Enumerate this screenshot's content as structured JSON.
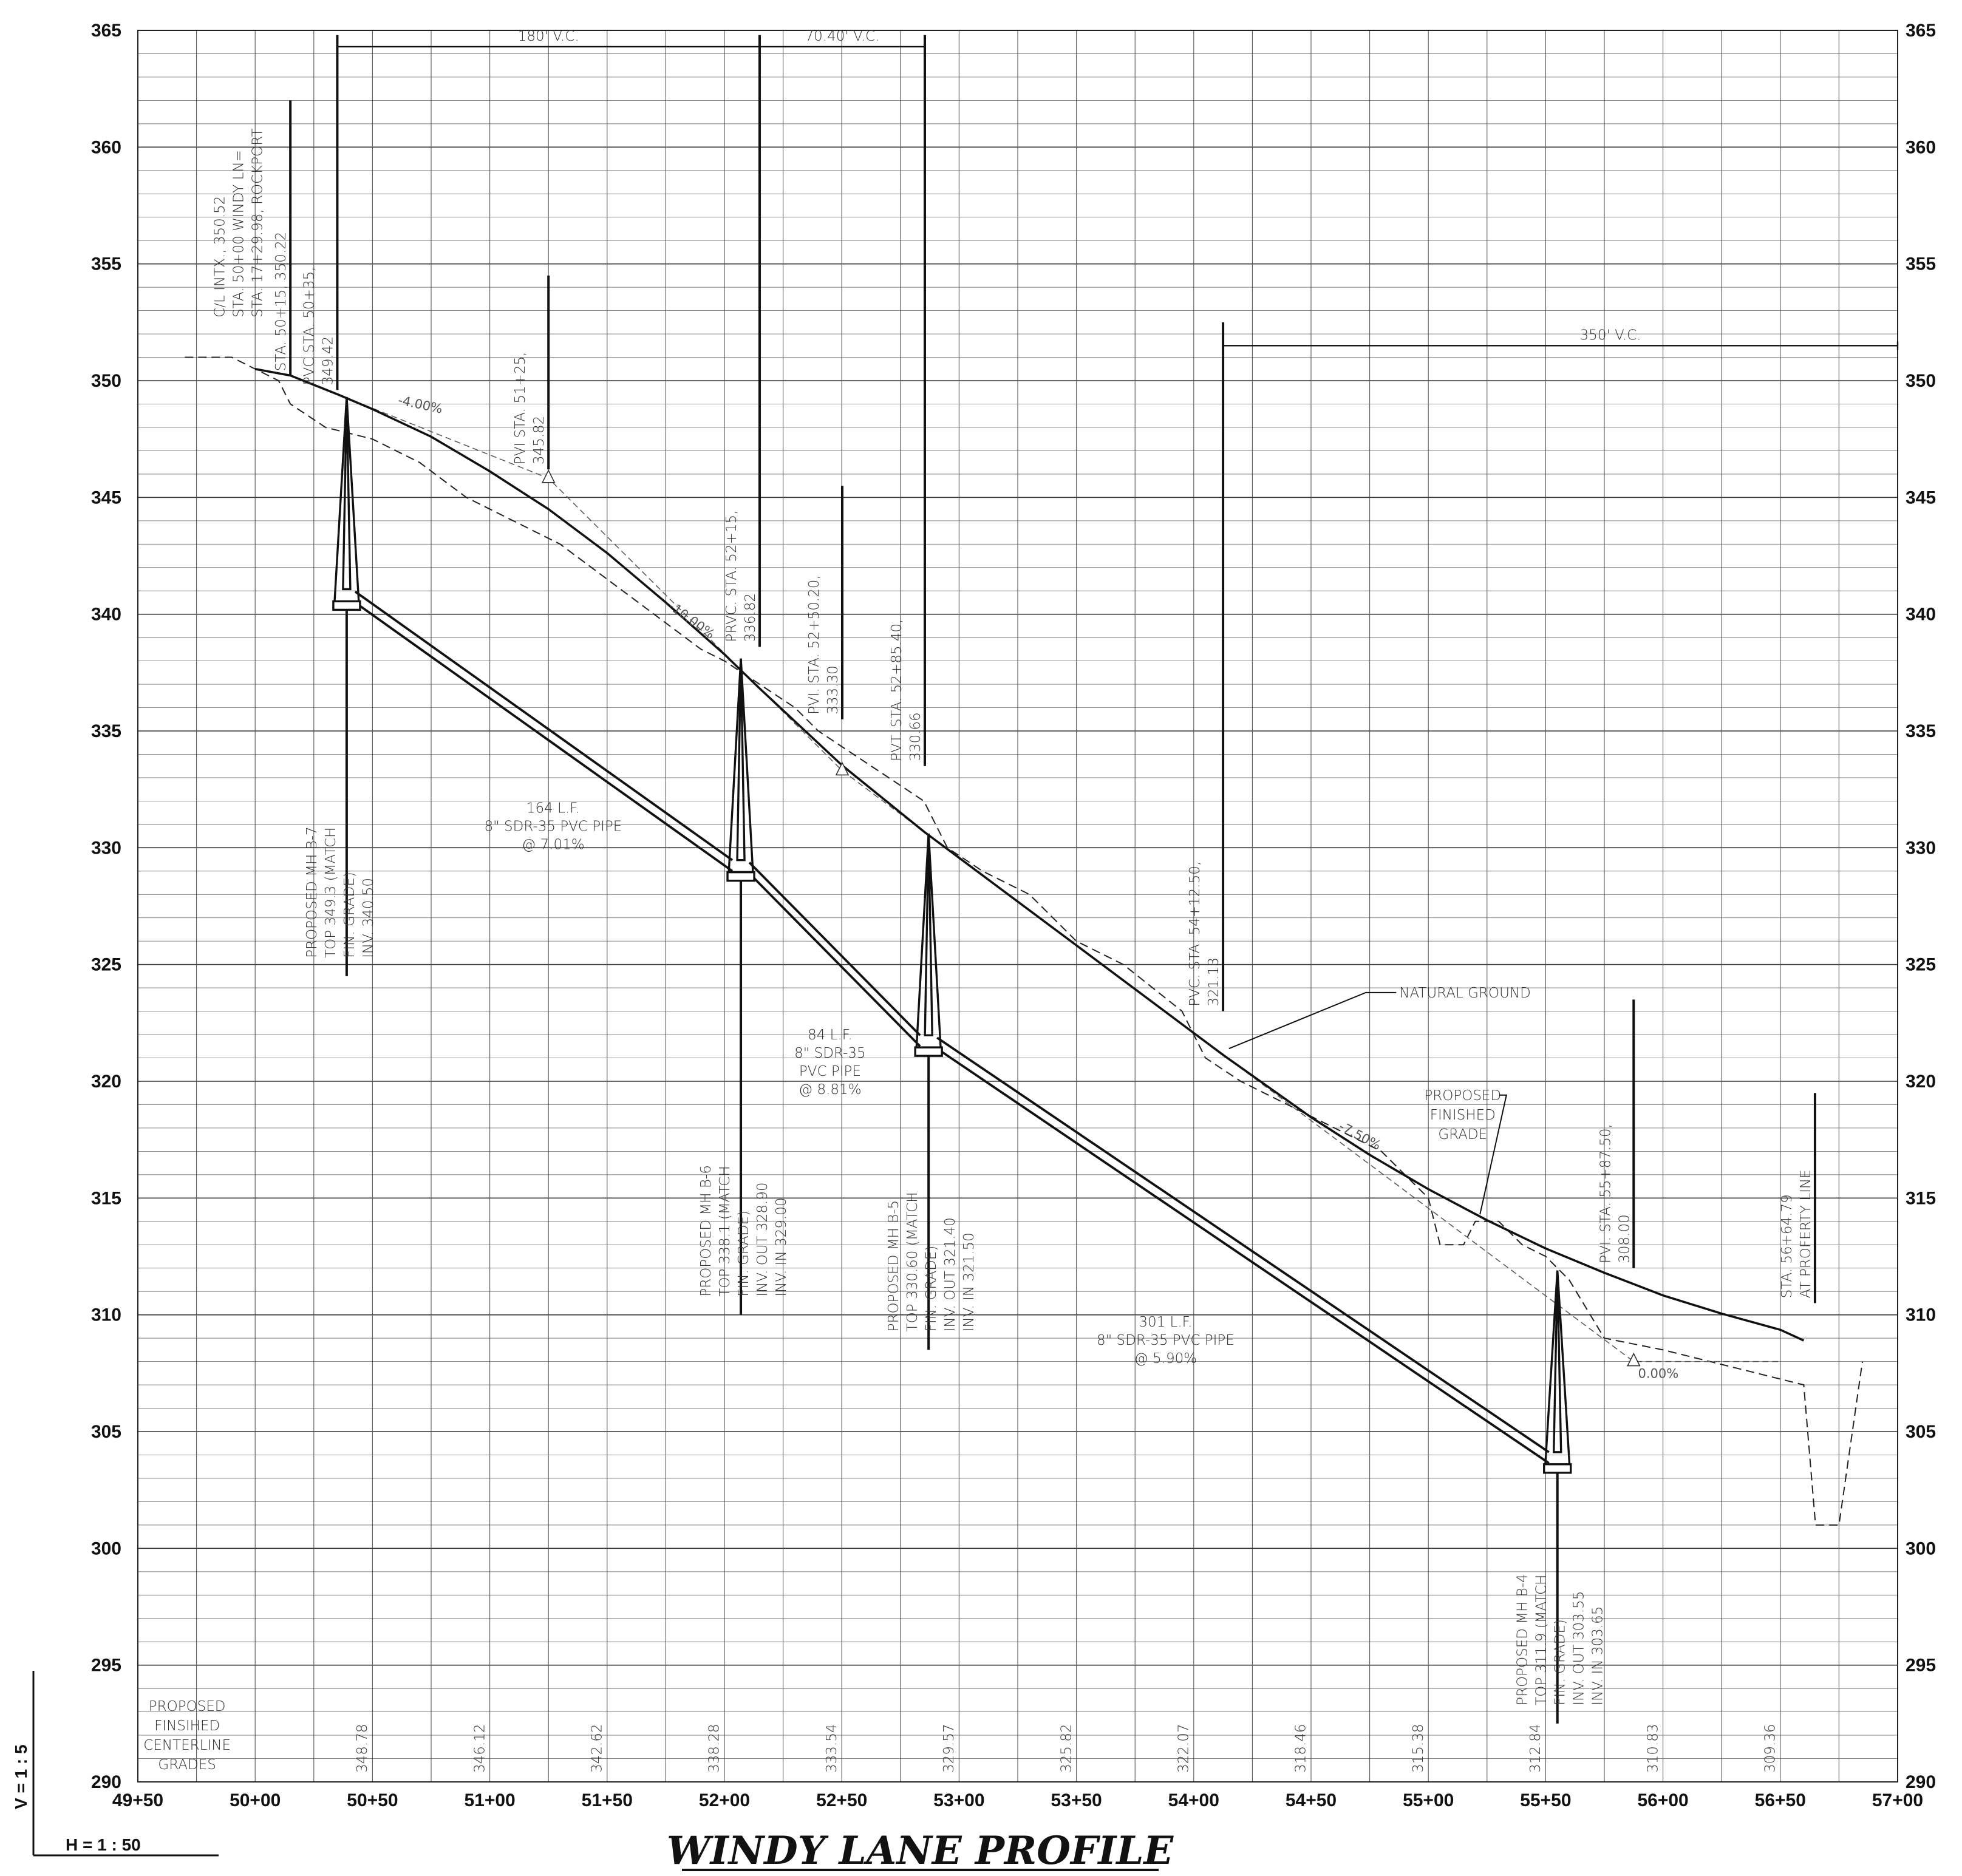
{
  "title": "WINDY   LANE   PROFILE",
  "scale": {
    "horizontal": "H = 1 : 50",
    "vertical": "V = 1 : 5"
  },
  "chart_data": {
    "type": "profile",
    "x_range": [
      4950,
      5700
    ],
    "y_range": [
      290,
      365
    ],
    "y_ticks": [
      290,
      295,
      300,
      305,
      310,
      315,
      320,
      325,
      330,
      335,
      340,
      345,
      350,
      355,
      360,
      365
    ],
    "x_ticks": [
      {
        "x": 4950,
        "label": "49+50"
      },
      {
        "x": 5000,
        "label": "50+00"
      },
      {
        "x": 5050,
        "label": "50+50"
      },
      {
        "x": 5100,
        "label": "51+00"
      },
      {
        "x": 5150,
        "label": "51+50"
      },
      {
        "x": 5200,
        "label": "52+00"
      },
      {
        "x": 5250,
        "label": "52+50"
      },
      {
        "x": 5300,
        "label": "53+00"
      },
      {
        "x": 5350,
        "label": "53+50"
      },
      {
        "x": 5400,
        "label": "54+00"
      },
      {
        "x": 5450,
        "label": "54+50"
      },
      {
        "x": 5500,
        "label": "55+00"
      },
      {
        "x": 5550,
        "label": "55+50"
      },
      {
        "x": 5600,
        "label": "56+00"
      },
      {
        "x": 5650,
        "label": "56+50"
      },
      {
        "x": 5700,
        "label": "57+00"
      }
    ],
    "centerline_grades_label": [
      "PROPOSED",
      "FINSIHED",
      "CENTERLINE",
      "GRADES"
    ],
    "centerline_grades": [
      {
        "x": 5045,
        "label": "348.78"
      },
      {
        "x": 5095,
        "label": "346.12"
      },
      {
        "x": 5145,
        "label": "342.62"
      },
      {
        "x": 5195,
        "label": "338.28"
      },
      {
        "x": 5245,
        "label": "333.54"
      },
      {
        "x": 5295,
        "label": "329.57"
      },
      {
        "x": 5345,
        "label": "325.82"
      },
      {
        "x": 5395,
        "label": "322.07"
      },
      {
        "x": 5445,
        "label": "318.46"
      },
      {
        "x": 5495,
        "label": "315.38"
      },
      {
        "x": 5545,
        "label": "312.84"
      },
      {
        "x": 5595,
        "label": "310.83"
      },
      {
        "x": 5645,
        "label": "309.36"
      }
    ],
    "finished_grade": [
      [
        5000,
        350.5
      ],
      [
        5015,
        350.22
      ],
      [
        5035,
        349.42
      ],
      [
        5050,
        348.78
      ],
      [
        5075,
        347.6
      ],
      [
        5100,
        346.12
      ],
      [
        5125,
        344.5
      ],
      [
        5150,
        342.62
      ],
      [
        5175,
        340.5
      ],
      [
        5200,
        338.28
      ],
      [
        5215,
        336.82
      ],
      [
        5250,
        333.54
      ],
      [
        5285.4,
        330.66
      ],
      [
        5300,
        329.57
      ],
      [
        5350,
        325.82
      ],
      [
        5400,
        322.07
      ],
      [
        5412.5,
        321.13
      ],
      [
        5450,
        318.46
      ],
      [
        5475,
        316.85
      ],
      [
        5500,
        315.38
      ],
      [
        5525,
        314.05
      ],
      [
        5550,
        312.84
      ],
      [
        5575,
        311.8
      ],
      [
        5600,
        310.83
      ],
      [
        5625,
        310.05
      ],
      [
        5650,
        309.36
      ],
      [
        5660,
        308.9
      ]
    ],
    "natural_ground": [
      [
        4970,
        351
      ],
      [
        4990,
        351
      ],
      [
        5010,
        350
      ],
      [
        5015,
        349
      ],
      [
        5030,
        348
      ],
      [
        5050,
        347.5
      ],
      [
        5070,
        346.5
      ],
      [
        5090,
        345
      ],
      [
        5110,
        344
      ],
      [
        5130,
        343
      ],
      [
        5150,
        341.5
      ],
      [
        5170,
        340
      ],
      [
        5190,
        338.5
      ],
      [
        5200,
        338
      ],
      [
        5215,
        337
      ],
      [
        5230,
        336
      ],
      [
        5240,
        335
      ],
      [
        5255,
        334
      ],
      [
        5270,
        333
      ],
      [
        5285,
        332
      ],
      [
        5295,
        330
      ],
      [
        5310,
        329
      ],
      [
        5330,
        328
      ],
      [
        5350,
        326
      ],
      [
        5370,
        325
      ],
      [
        5395,
        323
      ],
      [
        5405,
        321
      ],
      [
        5420,
        320
      ],
      [
        5440,
        319
      ],
      [
        5460,
        318
      ],
      [
        5480,
        317
      ],
      [
        5500,
        315
      ],
      [
        5505,
        313
      ],
      [
        5515,
        313
      ],
      [
        5520,
        314
      ],
      [
        5530,
        314
      ],
      [
        5540,
        313
      ],
      [
        5550,
        312.5
      ],
      [
        5560,
        311.5
      ],
      [
        5575,
        309
      ],
      [
        5600,
        308.5
      ],
      [
        5640,
        307.5
      ],
      [
        5660,
        307
      ],
      [
        5665,
        301
      ],
      [
        5675,
        301
      ],
      [
        5685,
        308
      ]
    ],
    "tangent_lines": [
      [
        [
          5035,
          349.42
        ],
        [
          5125,
          345.82
        ],
        [
          5215,
          336.82
        ]
      ],
      [
        [
          5215,
          336.82
        ],
        [
          5250.2,
          333.3
        ],
        [
          5285.4,
          330.66
        ]
      ],
      [
        [
          5412.5,
          321.13
        ],
        [
          5587.5,
          308.0
        ],
        [
          5650,
          308.0
        ]
      ]
    ],
    "pvi_markers": [
      [
        5125,
        345.82
      ],
      [
        5250.2,
        333.3
      ],
      [
        5587.5,
        308.0
      ]
    ],
    "grade_labels": [
      {
        "x": 5070,
        "y": 348.8,
        "label": "-4.00%",
        "angle": 12
      },
      {
        "x": 5185,
        "y": 339.6,
        "label": "-10.00%",
        "angle": 36
      },
      {
        "x": 5470,
        "y": 317.5,
        "label": "-7.50%",
        "angle": 28
      },
      {
        "x": 5598,
        "y": 307.3,
        "label": "0.00%",
        "angle": 0
      }
    ],
    "vertical_curves": [
      {
        "start": 5035,
        "end": 5215,
        "y": 364.3,
        "label": "180' V.C."
      },
      {
        "start": 5215,
        "end": 5285.4,
        "y": 364.3,
        "label": "70.40' V.C."
      },
      {
        "start": 5412.5,
        "end": 5700,
        "y": 351.5,
        "label": "350' V.C."
      }
    ],
    "station_callouts": [
      {
        "x": 5005,
        "y0": 352.5,
        "y1": 352.5,
        "lines": [
          "C/L INTX., 350.52",
          "STA. 50+00 WINDY LN=",
          "STA. 17+29.98, ROCKPORT"
        ]
      },
      {
        "x": 5015,
        "y0": 350.2,
        "y1": 362.0,
        "lines": [
          "STA. 50+15, 350.22"
        ]
      },
      {
        "x": 5035,
        "y0": 349.6,
        "y1": 364.8,
        "lines": [
          "PVC STA. 50+35,",
          "349.42"
        ]
      },
      {
        "x": 5125,
        "y0": 346.2,
        "y1": 354.5,
        "lines": [
          "PVI STA. 51+25,",
          "345.82"
        ]
      },
      {
        "x": 5215,
        "y0": 338.6,
        "y1": 364.8,
        "lines": [
          "PRVC. STA. 52+15,",
          "336.82"
        ]
      },
      {
        "x": 5250.2,
        "y0": 335.5,
        "y1": 345.5,
        "lines": [
          "PVI. STA. 52+50.20,",
          "333.30"
        ]
      },
      {
        "x": 5285.4,
        "y0": 333.5,
        "y1": 364.8,
        "lines": [
          "PVT. STA. 52+85.40,",
          "330.66"
        ]
      },
      {
        "x": 5412.5,
        "y0": 323.0,
        "y1": 352.5,
        "lines": [
          "PVC. STA. 54+12.50,",
          "321.13"
        ]
      },
      {
        "x": 5587.5,
        "y0": 312.0,
        "y1": 323.5,
        "lines": [
          "PVI. STA. 55+87.50,",
          "308.00"
        ]
      },
      {
        "x": 5664.79,
        "y0": 310.5,
        "y1": 319.5,
        "lines": [
          "STA. 56+64.79",
          "AT PROFERTY LINE"
        ]
      }
    ],
    "manholes": [
      {
        "x": 5039,
        "top": 349.3,
        "inv": 340.5,
        "line_bottom": 324.5,
        "lines": [
          "PROPOSED MH B-7",
          "TOP 349.3 (MATCH",
          "FIN. GRADE)",
          "INV. 340.50"
        ]
      },
      {
        "x": 5207,
        "top": 338.1,
        "inv": 328.9,
        "line_bottom": 310.0,
        "lines": [
          "PROPOSED MH B-6",
          "TOP 338.1 (MATCH",
          "FIN. GRADE)",
          "INV. OUT 328.90",
          "INV. IN 329.00"
        ]
      },
      {
        "x": 5287,
        "top": 330.6,
        "inv": 321.4,
        "line_bottom": 308.5,
        "lines": [
          "PROPOSED MH B-5",
          "TOP 330.60 (MATCH",
          "FIN. GRADE)",
          "INV. OUT 321.40",
          "INV. IN 321.50"
        ]
      },
      {
        "x": 5555,
        "top": 311.9,
        "inv": 303.55,
        "line_bottom": 292.5,
        "lines": [
          "PROPOSED MH B-4",
          "TOP 311.9 (MATCH",
          "FIN. GRADE)",
          "INV. OUT 303.55",
          "INV. IN 303.65"
        ]
      }
    ],
    "pipes": [
      {
        "from": [
          5039,
          340.5
        ],
        "to": [
          5207,
          329.0
        ],
        "lines": [
          "164 L.F.",
          "8\" SDR-35 PVC PIPE",
          "@ 7.01%"
        ],
        "label_x": 5127,
        "label_y": 331.5
      },
      {
        "from": [
          5207,
          328.9
        ],
        "to": [
          5287,
          321.5
        ],
        "lines": [
          "84 L.F.",
          "8\" SDR-35",
          "PVC PIPE",
          "@ 8.81%"
        ],
        "label_x": 5245,
        "label_y": 321.8
      },
      {
        "from": [
          5287,
          321.4
        ],
        "to": [
          5555,
          303.65
        ],
        "lines": [
          "301 L.F.",
          "8\" SDR-35 PVC PIPE",
          "@ 5.90%"
        ],
        "label_x": 5388,
        "label_y": 309.5
      }
    ],
    "annotations": [
      {
        "label": "NATURAL GROUND",
        "x": 5485,
        "y": 323.8,
        "leader_to": [
          5415,
          321.4
        ]
      },
      {
        "lines": [
          "PROPOSED",
          "FINISHED",
          "GRADE"
        ],
        "x": 5525,
        "y": 319.2,
        "leader_to": [
          5522,
          314.3
        ]
      }
    ]
  }
}
